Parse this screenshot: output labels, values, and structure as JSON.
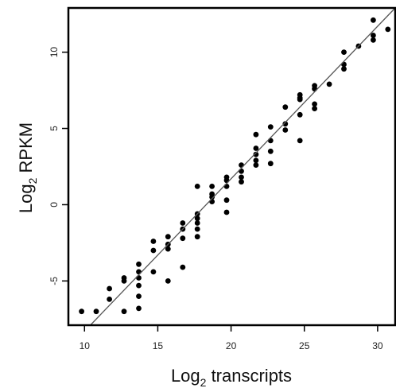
{
  "chart_data": {
    "type": "scatter",
    "title": "",
    "xlabel": {
      "main": "Log",
      "sub": "2",
      "rest": " transcripts"
    },
    "ylabel": {
      "main": "Log",
      "sub": "2",
      "rest": " RPKM"
    },
    "xlim": [
      8.9,
      31.2
    ],
    "ylim": [
      -7.9,
      12.9
    ],
    "x_ticks": [
      10,
      15,
      20,
      25,
      30
    ],
    "y_ticks": [
      -5,
      0,
      5,
      10
    ],
    "grid": false,
    "legend": "none",
    "point_color": "#000000",
    "fit_line": {
      "slope": 1.0,
      "intercept": -18.3,
      "color": "#555555"
    },
    "points": [
      [
        9.8,
        -7.0
      ],
      [
        10.8,
        -7.0
      ],
      [
        11.7,
        -6.2
      ],
      [
        11.7,
        -5.5
      ],
      [
        12.7,
        -4.8
      ],
      [
        12.7,
        -5.0
      ],
      [
        12.7,
        -7.0
      ],
      [
        13.7,
        -3.9
      ],
      [
        13.7,
        -4.4
      ],
      [
        13.7,
        -4.8
      ],
      [
        13.7,
        -5.3
      ],
      [
        13.7,
        -6.0
      ],
      [
        13.7,
        -6.8
      ],
      [
        14.7,
        -2.4
      ],
      [
        14.7,
        -3.0
      ],
      [
        14.7,
        -4.4
      ],
      [
        15.7,
        -2.1
      ],
      [
        15.7,
        -2.6
      ],
      [
        15.7,
        -2.9
      ],
      [
        15.7,
        -5.0
      ],
      [
        16.7,
        -1.2
      ],
      [
        16.7,
        -1.6
      ],
      [
        16.7,
        -2.2
      ],
      [
        16.7,
        -4.1
      ],
      [
        17.7,
        -0.6
      ],
      [
        17.7,
        -0.9
      ],
      [
        17.7,
        -1.2
      ],
      [
        17.7,
        -1.6
      ],
      [
        17.7,
        -2.1
      ],
      [
        17.7,
        1.2
      ],
      [
        18.7,
        0.2
      ],
      [
        18.7,
        0.5
      ],
      [
        18.7,
        0.7
      ],
      [
        18.7,
        1.2
      ],
      [
        19.7,
        1.6
      ],
      [
        19.7,
        1.8
      ],
      [
        19.7,
        1.2
      ],
      [
        19.7,
        0.3
      ],
      [
        19.7,
        -0.5
      ],
      [
        20.7,
        2.6
      ],
      [
        20.7,
        2.2
      ],
      [
        20.7,
        1.8
      ],
      [
        20.7,
        1.5
      ],
      [
        21.7,
        4.6
      ],
      [
        21.7,
        3.7
      ],
      [
        21.7,
        3.3
      ],
      [
        21.7,
        2.9
      ],
      [
        21.7,
        2.6
      ],
      [
        22.7,
        5.1
      ],
      [
        22.7,
        4.2
      ],
      [
        22.7,
        3.5
      ],
      [
        22.7,
        2.7
      ],
      [
        23.7,
        6.4
      ],
      [
        23.7,
        5.3
      ],
      [
        23.7,
        4.9
      ],
      [
        24.7,
        7.2
      ],
      [
        24.7,
        7.0
      ],
      [
        24.7,
        6.9
      ],
      [
        24.7,
        5.9
      ],
      [
        24.7,
        4.2
      ],
      [
        25.7,
        7.8
      ],
      [
        25.7,
        7.6
      ],
      [
        25.7,
        6.6
      ],
      [
        25.7,
        6.3
      ],
      [
        26.7,
        7.9
      ],
      [
        27.7,
        10.0
      ],
      [
        27.7,
        9.2
      ],
      [
        27.7,
        8.9
      ],
      [
        28.7,
        10.4
      ],
      [
        29.7,
        12.1
      ],
      [
        29.7,
        11.1
      ],
      [
        29.7,
        10.8
      ],
      [
        30.7,
        11.5
      ]
    ]
  }
}
